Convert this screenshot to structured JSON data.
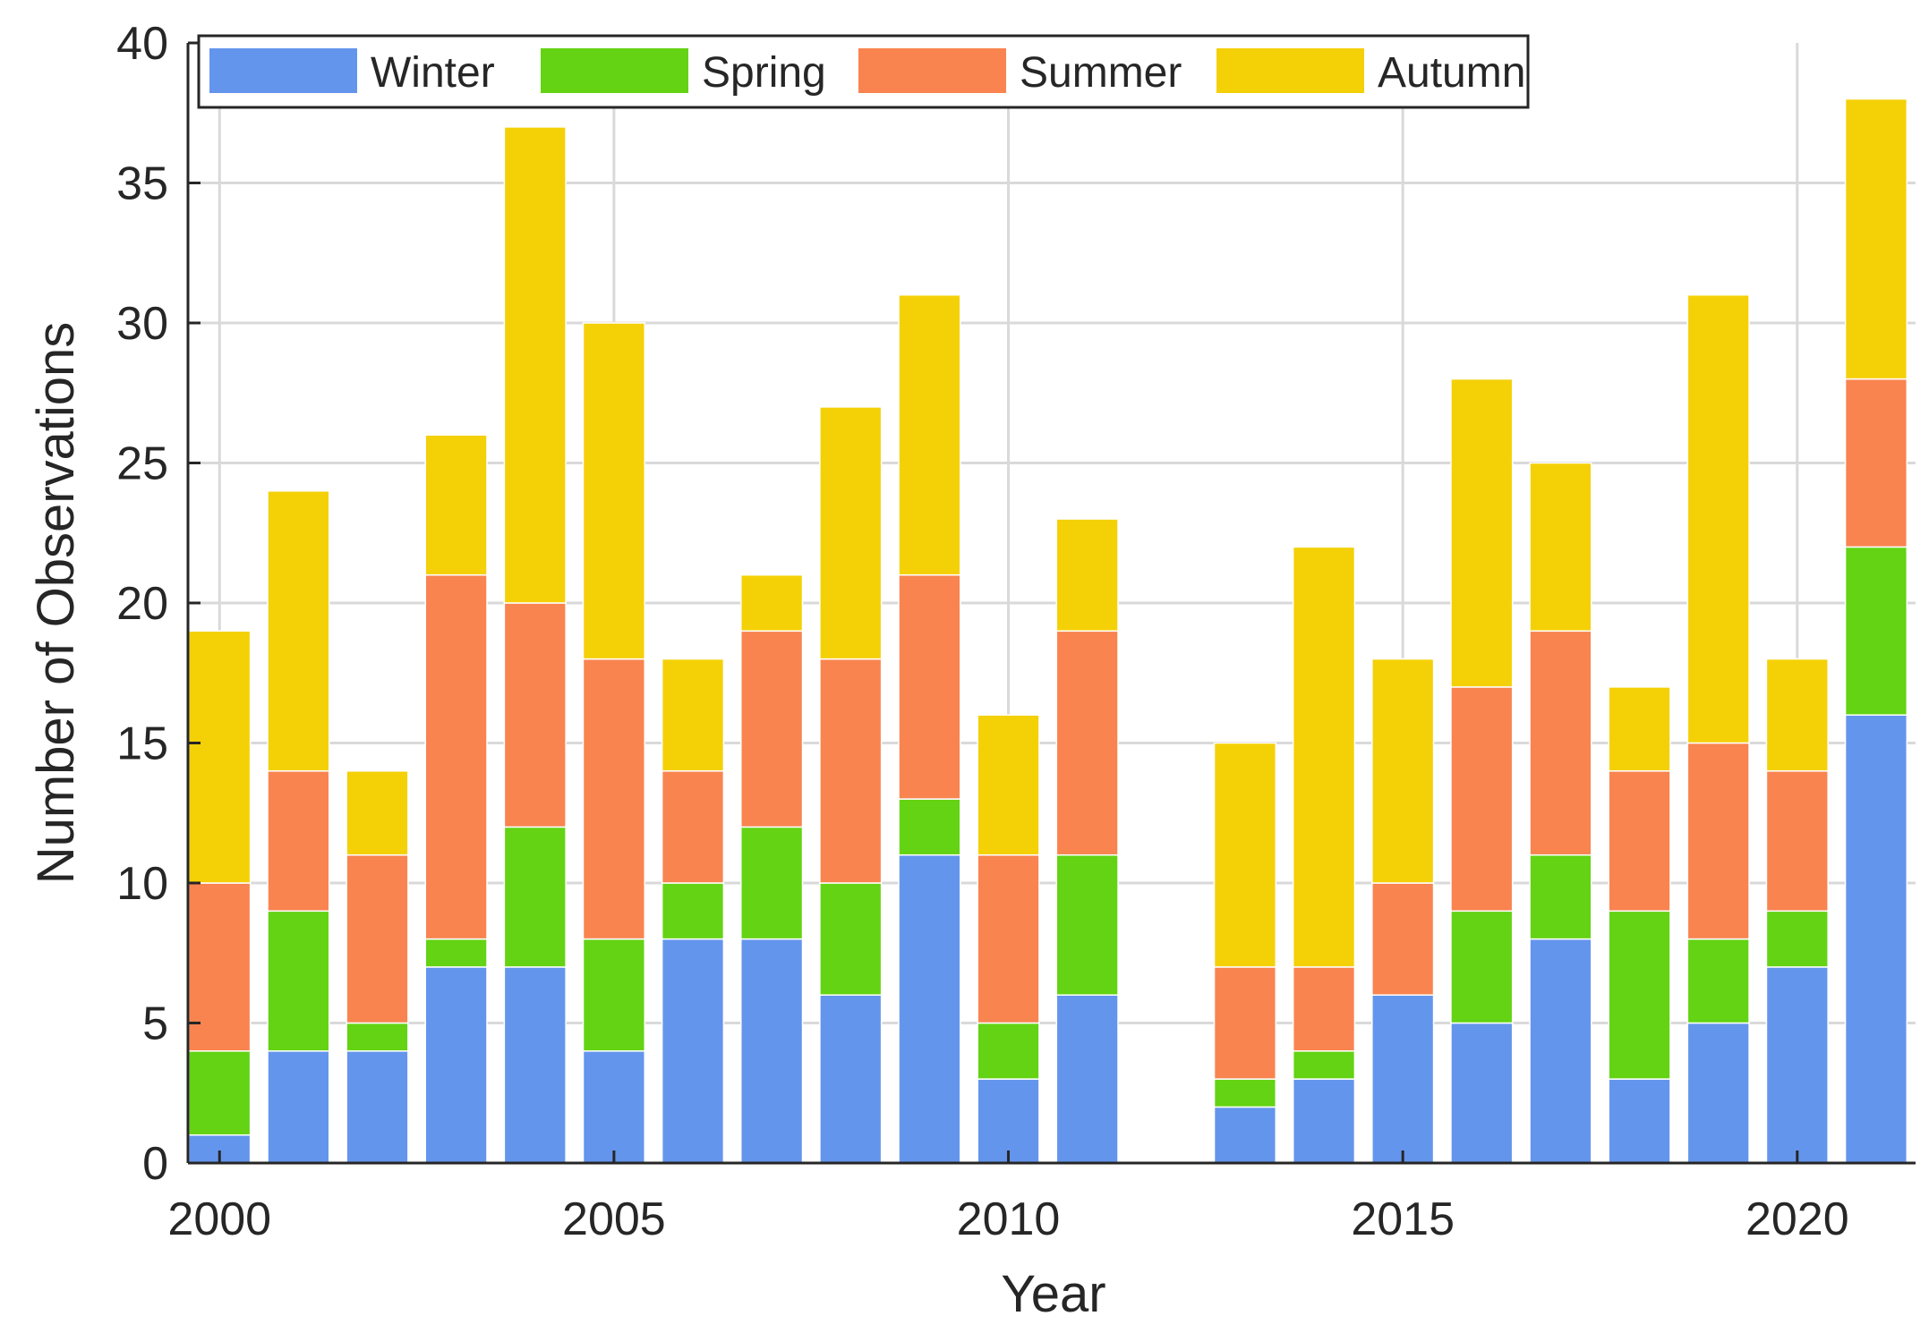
{
  "chart_data": {
    "type": "bar",
    "stacked": true,
    "title": "",
    "xlabel": "Year",
    "ylabel": "Number of Observations",
    "x": [
      2000,
      2001,
      2002,
      2003,
      2004,
      2005,
      2006,
      2007,
      2008,
      2009,
      2010,
      2011,
      2012,
      2013,
      2014,
      2015,
      2016,
      2017,
      2018,
      2019,
      2020,
      2021
    ],
    "xlim": [
      1999.6,
      2021.5
    ],
    "ylim": [
      0,
      40
    ],
    "x_ticks": [
      2000,
      2005,
      2010,
      2015,
      2020
    ],
    "y_ticks": [
      0,
      5,
      10,
      15,
      20,
      25,
      30,
      35,
      40
    ],
    "grid": true,
    "legend_position": "top-left",
    "legend_orientation": "horizontal",
    "series": [
      {
        "name": "Winter",
        "color": "#6495ED",
        "values": [
          1,
          4,
          4,
          7,
          7,
          4,
          8,
          8,
          6,
          11,
          3,
          6,
          0,
          2,
          3,
          6,
          5,
          8,
          3,
          5,
          7,
          16
        ]
      },
      {
        "name": "Spring",
        "color": "#63D313",
        "values": [
          3,
          5,
          1,
          1,
          5,
          4,
          2,
          4,
          4,
          2,
          2,
          5,
          0,
          1,
          1,
          0,
          4,
          3,
          6,
          3,
          2,
          6
        ]
      },
      {
        "name": "Summer",
        "color": "#F9844F",
        "values": [
          6,
          5,
          6,
          13,
          8,
          10,
          4,
          7,
          8,
          8,
          6,
          8,
          0,
          4,
          3,
          4,
          8,
          8,
          5,
          7,
          5,
          6
        ]
      },
      {
        "name": "Autumn",
        "color": "#F4D007",
        "values": [
          9,
          10,
          3,
          5,
          17,
          12,
          4,
          2,
          9,
          10,
          5,
          4,
          0,
          8,
          15,
          8,
          11,
          6,
          3,
          16,
          4,
          10
        ]
      }
    ]
  }
}
